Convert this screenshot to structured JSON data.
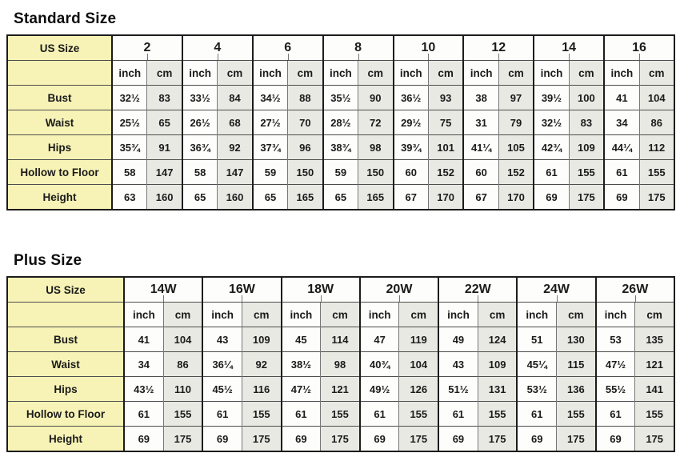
{
  "colors": {
    "label_bg": "#f7f3b6",
    "cm_bg": "#e9e9e3",
    "inch_bg": "#fdfdfc",
    "border_dark": "#1c1c1c",
    "text": "#1b1b1b"
  },
  "standard": {
    "title": "Standard Size",
    "corner_label": "US Size",
    "unit_labels": [
      "inch",
      "cm"
    ],
    "sizes": [
      "2",
      "4",
      "6",
      "8",
      "10",
      "12",
      "14",
      "16"
    ],
    "rows": [
      {
        "label": "Bust",
        "cells": [
          [
            "32½",
            "83"
          ],
          [
            "33½",
            "84"
          ],
          [
            "34½",
            "88"
          ],
          [
            "35½",
            "90"
          ],
          [
            "36½",
            "93"
          ],
          [
            "38",
            "97"
          ],
          [
            "39½",
            "100"
          ],
          [
            "41",
            "104"
          ]
        ]
      },
      {
        "label": "Waist",
        "cells": [
          [
            "25½",
            "65"
          ],
          [
            "26½",
            "68"
          ],
          [
            "27½",
            "70"
          ],
          [
            "28½",
            "72"
          ],
          [
            "29½",
            "75"
          ],
          [
            "31",
            "79"
          ],
          [
            "32½",
            "83"
          ],
          [
            "34",
            "86"
          ]
        ]
      },
      {
        "label": "Hips",
        "cells": [
          [
            "35¾",
            "91"
          ],
          [
            "36¾",
            "92"
          ],
          [
            "37¾",
            "96"
          ],
          [
            "38¾",
            "98"
          ],
          [
            "39¾",
            "101"
          ],
          [
            "41¼",
            "105"
          ],
          [
            "42¾",
            "109"
          ],
          [
            "44¼",
            "112"
          ]
        ]
      },
      {
        "label": "Hollow to Floor",
        "cells": [
          [
            "58",
            "147"
          ],
          [
            "58",
            "147"
          ],
          [
            "59",
            "150"
          ],
          [
            "59",
            "150"
          ],
          [
            "60",
            "152"
          ],
          [
            "60",
            "152"
          ],
          [
            "61",
            "155"
          ],
          [
            "61",
            "155"
          ]
        ]
      },
      {
        "label": "Height",
        "cells": [
          [
            "63",
            "160"
          ],
          [
            "65",
            "160"
          ],
          [
            "65",
            "165"
          ],
          [
            "65",
            "165"
          ],
          [
            "67",
            "170"
          ],
          [
            "67",
            "170"
          ],
          [
            "69",
            "175"
          ],
          [
            "69",
            "175"
          ]
        ]
      }
    ]
  },
  "plus": {
    "title": "Plus Size",
    "corner_label": "US Size",
    "unit_labels": [
      "inch",
      "cm"
    ],
    "sizes": [
      "14W",
      "16W",
      "18W",
      "20W",
      "22W",
      "24W",
      "26W"
    ],
    "rows": [
      {
        "label": "Bust",
        "cells": [
          [
            "41",
            "104"
          ],
          [
            "43",
            "109"
          ],
          [
            "45",
            "114"
          ],
          [
            "47",
            "119"
          ],
          [
            "49",
            "124"
          ],
          [
            "51",
            "130"
          ],
          [
            "53",
            "135"
          ]
        ]
      },
      {
        "label": "Waist",
        "cells": [
          [
            "34",
            "86"
          ],
          [
            "36¼",
            "92"
          ],
          [
            "38½",
            "98"
          ],
          [
            "40¾",
            "104"
          ],
          [
            "43",
            "109"
          ],
          [
            "45¼",
            "115"
          ],
          [
            "47½",
            "121"
          ]
        ]
      },
      {
        "label": "Hips",
        "cells": [
          [
            "43½",
            "110"
          ],
          [
            "45½",
            "116"
          ],
          [
            "47½",
            "121"
          ],
          [
            "49½",
            "126"
          ],
          [
            "51½",
            "131"
          ],
          [
            "53½",
            "136"
          ],
          [
            "55½",
            "141"
          ]
        ]
      },
      {
        "label": "Hollow to Floor",
        "cells": [
          [
            "61",
            "155"
          ],
          [
            "61",
            "155"
          ],
          [
            "61",
            "155"
          ],
          [
            "61",
            "155"
          ],
          [
            "61",
            "155"
          ],
          [
            "61",
            "155"
          ],
          [
            "61",
            "155"
          ]
        ]
      },
      {
        "label": "Height",
        "cells": [
          [
            "69",
            "175"
          ],
          [
            "69",
            "175"
          ],
          [
            "69",
            "175"
          ],
          [
            "69",
            "175"
          ],
          [
            "69",
            "175"
          ],
          [
            "69",
            "175"
          ],
          [
            "69",
            "175"
          ]
        ]
      }
    ]
  }
}
